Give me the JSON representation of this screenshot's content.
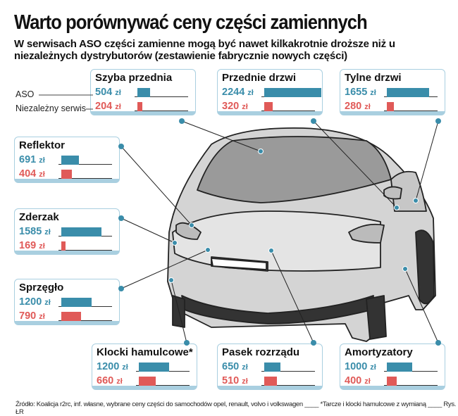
{
  "title": "Warto porównywać ceny części zamiennych",
  "subtitle": "W serwisach ASO części zamienne mogą być nawet kilkakrotnie droższe niż u niezależnych dystrybutorów (zestawienie fabrycznie nowych części)",
  "legend": {
    "aso": "ASO",
    "ns": "Niezależny serwis"
  },
  "unit": "zł",
  "colors": {
    "aso": "#3a8daa",
    "ns": "#e05a58",
    "border": "#a9cfe0"
  },
  "chart_data": {
    "type": "bar",
    "categories": [
      "Szyba przednia",
      "Przednie drzwi",
      "Tylne drzwi",
      "Reflektor",
      "Zderzak",
      "Sprzęgło",
      "Klocki hamulcowe*",
      "Pasek rozrządu",
      "Amortyzatory"
    ],
    "series": [
      {
        "name": "ASO",
        "values": [
          504,
          2244,
          1655,
          691,
          1585,
          1200,
          1200,
          650,
          1000
        ]
      },
      {
        "name": "Niezależny serwis",
        "values": [
          204,
          320,
          280,
          404,
          169,
          790,
          660,
          510,
          400
        ]
      }
    ],
    "unit": "zł"
  },
  "footer": "Źródło: Koalicja r2rc, inf. własne, wybrane ceny części do samochodów opel, renault, volvo i volkswagen ____ *Tarcze i klocki hamulcowe z wymianą ____ Rys. ŁR"
}
